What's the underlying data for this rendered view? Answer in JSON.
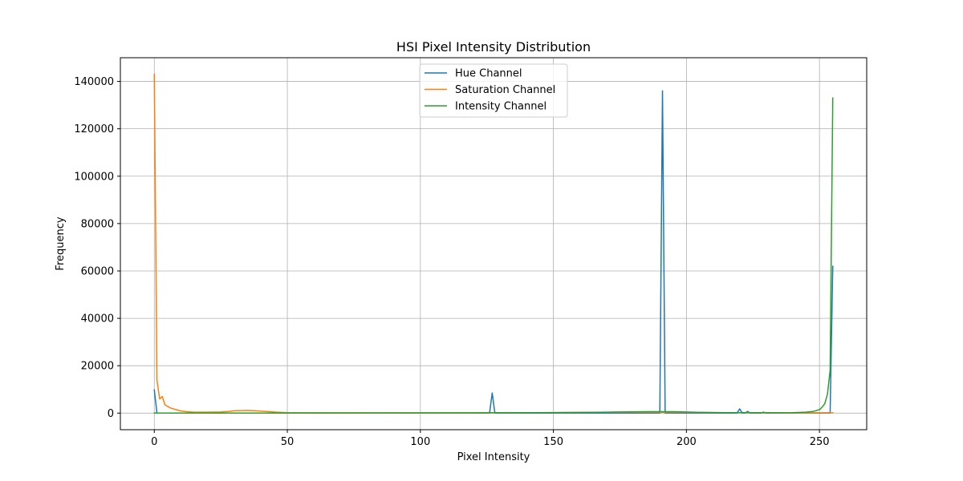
{
  "chart_data": {
    "type": "line",
    "title": "HSI Pixel Intensity Distribution",
    "xlabel": "Pixel Intensity",
    "ylabel": "Frequency",
    "xlim": [
      -12.75,
      267.75
    ],
    "ylim": [
      -7000,
      150000
    ],
    "xticks": [
      0,
      50,
      100,
      150,
      200,
      250
    ],
    "yticks": [
      0,
      20000,
      40000,
      60000,
      80000,
      100000,
      120000,
      140000
    ],
    "grid": true,
    "legend_position": "top-center",
    "series": [
      {
        "name": "Hue Channel",
        "color": "#1f77b4",
        "points": [
          [
            0,
            9800
          ],
          [
            1,
            0
          ],
          [
            126,
            0
          ],
          [
            127,
            8500
          ],
          [
            128,
            0
          ],
          [
            190,
            0
          ],
          [
            191,
            136000
          ],
          [
            192,
            0
          ],
          [
            219,
            0
          ],
          [
            220,
            1800
          ],
          [
            221,
            0
          ],
          [
            222,
            0
          ],
          [
            223,
            700
          ],
          [
            224,
            0
          ],
          [
            228,
            0
          ],
          [
            229,
            400
          ],
          [
            230,
            0
          ],
          [
            254,
            0
          ],
          [
            255,
            62000
          ]
        ]
      },
      {
        "name": "Saturation Channel",
        "color": "#ff7f0e",
        "points": [
          [
            0,
            143000
          ],
          [
            1,
            14000
          ],
          [
            2,
            6000
          ],
          [
            3,
            7000
          ],
          [
            4,
            3500
          ],
          [
            6,
            2200
          ],
          [
            8,
            1500
          ],
          [
            10,
            900
          ],
          [
            12,
            600
          ],
          [
            15,
            400
          ],
          [
            20,
            400
          ],
          [
            25,
            500
          ],
          [
            28,
            700
          ],
          [
            30,
            1000
          ],
          [
            35,
            1100
          ],
          [
            38,
            1000
          ],
          [
            42,
            700
          ],
          [
            46,
            400
          ],
          [
            50,
            200
          ],
          [
            60,
            150
          ],
          [
            80,
            100
          ],
          [
            100,
            100
          ],
          [
            120,
            100
          ],
          [
            140,
            200
          ],
          [
            160,
            300
          ],
          [
            170,
            350
          ],
          [
            180,
            350
          ],
          [
            200,
            300
          ],
          [
            220,
            200
          ],
          [
            240,
            100
          ],
          [
            255,
            150
          ]
        ]
      },
      {
        "name": "Intensity Channel",
        "color": "#2ca02c",
        "points": [
          [
            0,
            0
          ],
          [
            40,
            0
          ],
          [
            60,
            50
          ],
          [
            100,
            100
          ],
          [
            130,
            150
          ],
          [
            150,
            200
          ],
          [
            165,
            300
          ],
          [
            175,
            500
          ],
          [
            185,
            600
          ],
          [
            195,
            600
          ],
          [
            205,
            300
          ],
          [
            215,
            200
          ],
          [
            230,
            150
          ],
          [
            240,
            200
          ],
          [
            245,
            400
          ],
          [
            248,
            800
          ],
          [
            250,
            1500
          ],
          [
            251,
            2500
          ],
          [
            252,
            4000
          ],
          [
            253,
            8000
          ],
          [
            254,
            18000
          ],
          [
            255,
            133000
          ]
        ]
      }
    ]
  }
}
